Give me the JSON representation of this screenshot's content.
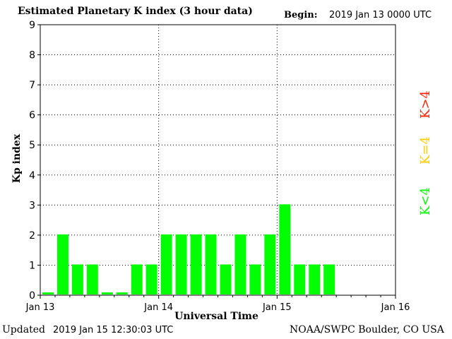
{
  "header": {
    "title": "Estimated Planetary K index (3 hour data)",
    "begin_label": "Begin:",
    "begin_value": "2019 Jan 13 0000 UTC"
  },
  "footer": {
    "updated_label": "Updated",
    "updated_value": "2019 Jan 15 12:30:03 UTC",
    "source": "NOAA/SWPC Boulder, CO USA"
  },
  "legend": {
    "low": {
      "label": "K<4",
      "color": "#00ff00"
    },
    "mid": {
      "label": "K=4",
      "color": "#ffcc00"
    },
    "high": {
      "label": "K>4",
      "color": "#ff2200"
    }
  },
  "chart_data": {
    "type": "bar",
    "title": "Estimated Planetary K index (3 hour data)",
    "xlabel": "Universal Time",
    "ylabel": "Kp index",
    "ylim": [
      0,
      9
    ],
    "yticks": [
      0,
      1,
      2,
      3,
      4,
      5,
      6,
      7,
      8,
      9
    ],
    "xticks": [
      "Jan 13",
      "Jan 14",
      "Jan 15",
      "Jan 16"
    ],
    "grid": true,
    "bar_color": "#00ff00",
    "interval": "3 hour",
    "values": [
      0,
      2,
      1,
      1,
      0,
      0,
      1,
      1,
      2,
      2,
      2,
      2,
      1,
      2,
      1,
      2,
      3,
      1,
      1,
      1
    ]
  }
}
